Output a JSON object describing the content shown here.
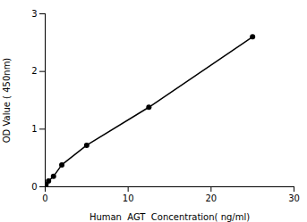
{
  "chart_data": {
    "type": "line",
    "x": [
      0.1,
      0.4,
      1.0,
      2.0,
      5.0,
      12.5,
      25.0
    ],
    "values": [
      0.04,
      0.1,
      0.18,
      0.38,
      0.72,
      1.38,
      2.6
    ],
    "xlabel": "Human  AGT  Concentration( ng/ml)",
    "ylabel": "OD Value ( 450nm)",
    "xlim": [
      0,
      30
    ],
    "ylim": [
      0,
      3
    ],
    "xticks": [
      0,
      10,
      20,
      30
    ],
    "yticks": [
      0,
      1,
      2,
      3
    ],
    "color": "#000000",
    "marker": "circle",
    "grid": false
  }
}
